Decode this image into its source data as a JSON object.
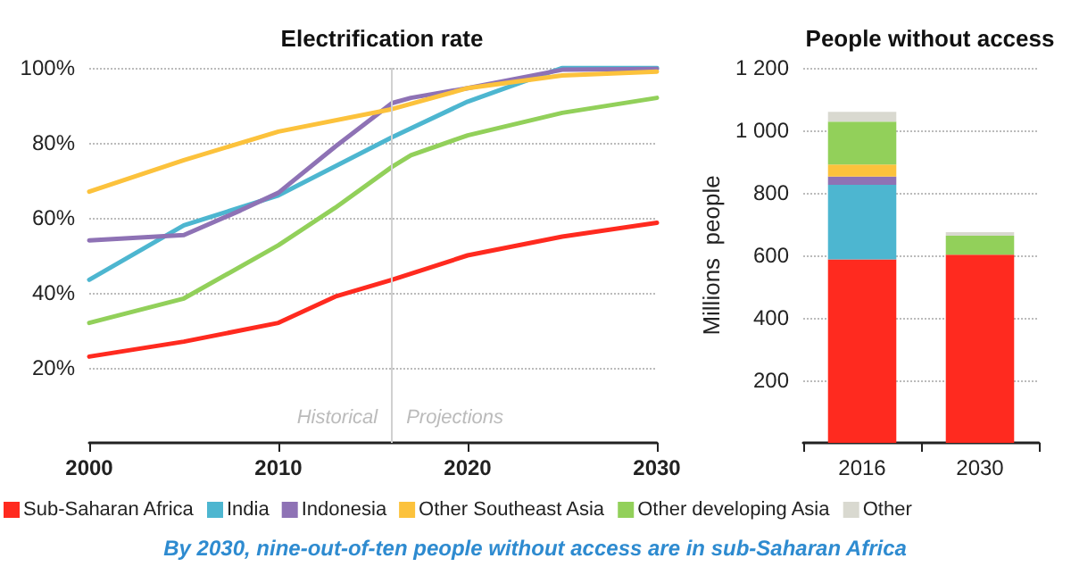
{
  "chart_data": [
    {
      "type": "line",
      "title": "Electrification rate",
      "xlim": [
        2000,
        2030
      ],
      "xticks": [
        2000,
        2010,
        2020,
        2030
      ],
      "ylim": [
        0,
        100
      ],
      "yticks": [
        {
          "value": 20,
          "label": "20%"
        },
        {
          "value": 40,
          "label": "40%"
        },
        {
          "value": 60,
          "label": "60%"
        },
        {
          "value": 80,
          "label": "80%"
        },
        {
          "value": 100,
          "label": "100%"
        }
      ],
      "grid": "y",
      "marker": "none",
      "line_style": "solid",
      "legend": false,
      "ref_lines": [
        {
          "axis": "x",
          "value": 2016,
          "color": "#d0d0d0"
        }
      ],
      "annotations": [
        "Historical",
        "Projections"
      ],
      "series": [
        {
          "color": "#ff2a1f",
          "x": [
            2000,
            2005,
            2010,
            2013,
            2016,
            2020,
            2025,
            2030
          ],
          "values": [
            23,
            27,
            32,
            39,
            43.5,
            50,
            55,
            58.7
          ]
        },
        {
          "color": "#4db6d0",
          "x": [
            2000,
            2005,
            2010,
            2016,
            2020,
            2022,
            2025,
            2030
          ],
          "values": [
            43.5,
            58,
            66,
            81.5,
            91,
            94.6,
            100,
            100
          ]
        },
        {
          "color": "#8e72b5",
          "x": [
            2000,
            2005,
            2008,
            2010,
            2013,
            2016,
            2017,
            2020,
            2025,
            2030
          ],
          "values": [
            54,
            55.4,
            62,
            66.7,
            79,
            90.6,
            92,
            94.6,
            99.5,
            99.7
          ]
        },
        {
          "color": "#fcc23c",
          "x": [
            2000,
            2005,
            2010,
            2016,
            2020,
            2025,
            2030
          ],
          "values": [
            67,
            75.4,
            83,
            89,
            94.6,
            98,
            99
          ]
        },
        {
          "color": "#92d05a",
          "x": [
            2000,
            2005,
            2010,
            2013,
            2016,
            2017,
            2020,
            2025,
            2030
          ],
          "values": [
            32,
            38.5,
            52.7,
            62.7,
            73.6,
            76.7,
            82,
            88,
            92
          ]
        }
      ]
    },
    {
      "type": "bar",
      "title": "People without access",
      "ylabel": "Millions  people",
      "stacked": true,
      "categories": [
        "2016",
        "2030"
      ],
      "ylim": [
        0,
        1200
      ],
      "yticks": [
        {
          "value": 200,
          "label": "200"
        },
        {
          "value": 400,
          "label": "400"
        },
        {
          "value": 600,
          "label": "600"
        },
        {
          "value": 800,
          "label": "800"
        },
        {
          "value": 1000,
          "label": "1 000"
        },
        {
          "value": 1200,
          "label": "1 200"
        }
      ],
      "grid": "y",
      "legend": "bottom",
      "annotations": [
        "By 2030, nine-out-of-ten people without access are in sub-Saharan Africa"
      ],
      "series": [
        {
          "name": "Sub-Saharan Africa",
          "color": "#ff2a1f",
          "values": [
            587,
            602
          ]
        },
        {
          "name": "India",
          "color": "#4db6d0",
          "values": [
            239,
            0
          ]
        },
        {
          "name": "Indonesia",
          "color": "#8e72b5",
          "values": [
            26,
            0
          ]
        },
        {
          "name": "Other Southeast Asia",
          "color": "#fcc23c",
          "values": [
            39,
            0
          ]
        },
        {
          "name": "Other developing Asia",
          "color": "#92d05a",
          "values": [
            137,
            61
          ]
        },
        {
          "name": "Other",
          "color": "#d9d9d0",
          "values": [
            31,
            11
          ]
        }
      ]
    }
  ]
}
